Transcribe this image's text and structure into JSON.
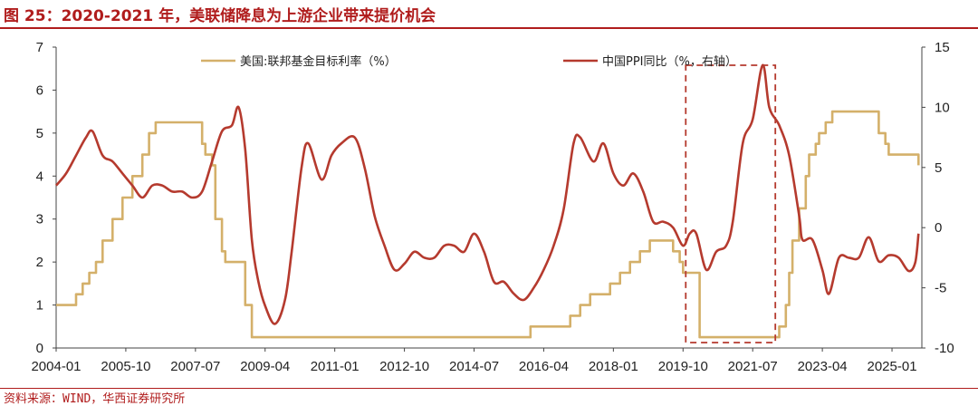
{
  "title": "图 25：2020-2021 年，美联储降息为上游企业带来提价机会",
  "source": "资料来源：WIND，华西证券研究所",
  "colors": {
    "fed": "#d4b06a",
    "ppi": "#b53a2e",
    "accent": "#b01c1c"
  },
  "chart_data": {
    "type": "line",
    "x_ticks": [
      "2004-01",
      "2005-10",
      "2007-07",
      "2009-04",
      "2011-01",
      "2012-10",
      "2014-07",
      "2016-04",
      "2018-01",
      "2019-10",
      "2021-07",
      "2023-04",
      "2025-01"
    ],
    "ylim_left": [
      0,
      7
    ],
    "ylim_right": [
      -10,
      15
    ],
    "y_ticks_left": [
      "0",
      "1",
      "2",
      "3",
      "4",
      "5",
      "6",
      "7"
    ],
    "y_ticks_right": [
      "-10",
      "-5",
      "0",
      "5",
      "10",
      "15"
    ],
    "legend_position": "top",
    "grid": false,
    "annotation": "dashed box over 2019-10 to 2021-07",
    "series": [
      {
        "name": "美国:联邦基金目标利率（%）",
        "axis": "left",
        "points": [
          [
            "2004-01",
            1.0
          ],
          [
            "2004-06",
            1.0
          ],
          [
            "2004-07",
            1.25
          ],
          [
            "2004-09",
            1.5
          ],
          [
            "2004-11",
            1.75
          ],
          [
            "2005-01",
            2.0
          ],
          [
            "2005-03",
            2.5
          ],
          [
            "2005-06",
            3.0
          ],
          [
            "2005-09",
            3.5
          ],
          [
            "2005-12",
            4.0
          ],
          [
            "2006-03",
            4.5
          ],
          [
            "2006-05",
            5.0
          ],
          [
            "2006-07",
            5.25
          ],
          [
            "2007-08",
            5.25
          ],
          [
            "2007-09",
            4.75
          ],
          [
            "2007-10",
            4.5
          ],
          [
            "2007-12",
            4.25
          ],
          [
            "2008-01",
            3.0
          ],
          [
            "2008-03",
            2.25
          ],
          [
            "2008-04",
            2.0
          ],
          [
            "2008-09",
            2.0
          ],
          [
            "2008-10",
            1.0
          ],
          [
            "2008-12",
            0.25
          ],
          [
            "2015-11",
            0.25
          ],
          [
            "2015-12",
            0.5
          ],
          [
            "2016-11",
            0.5
          ],
          [
            "2016-12",
            0.75
          ],
          [
            "2017-03",
            1.0
          ],
          [
            "2017-06",
            1.25
          ],
          [
            "2017-12",
            1.5
          ],
          [
            "2018-03",
            1.75
          ],
          [
            "2018-06",
            2.0
          ],
          [
            "2018-09",
            2.25
          ],
          [
            "2018-12",
            2.5
          ],
          [
            "2019-06",
            2.5
          ],
          [
            "2019-07",
            2.25
          ],
          [
            "2019-09",
            2.0
          ],
          [
            "2019-10",
            1.75
          ],
          [
            "2020-02",
            1.75
          ],
          [
            "2020-03",
            0.25
          ],
          [
            "2022-02",
            0.25
          ],
          [
            "2022-03",
            0.5
          ],
          [
            "2022-05",
            1.0
          ],
          [
            "2022-06",
            1.75
          ],
          [
            "2022-07",
            2.5
          ],
          [
            "2022-09",
            3.25
          ],
          [
            "2022-11",
            4.0
          ],
          [
            "2022-12",
            4.5
          ],
          [
            "2023-02",
            4.75
          ],
          [
            "2023-03",
            5.0
          ],
          [
            "2023-05",
            5.25
          ],
          [
            "2023-07",
            5.5
          ],
          [
            "2024-08",
            5.5
          ],
          [
            "2024-09",
            5.0
          ],
          [
            "2024-11",
            4.75
          ],
          [
            "2024-12",
            4.5
          ],
          [
            "2025-08",
            4.5
          ],
          [
            "2025-09",
            4.25
          ]
        ]
      },
      {
        "name": "中国PPI同比（%，右轴）",
        "axis": "right",
        "points": [
          [
            "2004-01",
            3.5
          ],
          [
            "2004-04",
            4.5
          ],
          [
            "2004-07",
            6.0
          ],
          [
            "2004-10",
            7.5
          ],
          [
            "2004-12",
            8.0
          ],
          [
            "2005-03",
            6.0
          ],
          [
            "2005-06",
            5.5
          ],
          [
            "2005-09",
            4.5
          ],
          [
            "2005-12",
            3.5
          ],
          [
            "2006-03",
            2.5
          ],
          [
            "2006-06",
            3.5
          ],
          [
            "2006-09",
            3.5
          ],
          [
            "2006-12",
            3.0
          ],
          [
            "2007-03",
            3.0
          ],
          [
            "2007-06",
            2.5
          ],
          [
            "2007-09",
            3.0
          ],
          [
            "2007-12",
            5.5
          ],
          [
            "2008-03",
            8.0
          ],
          [
            "2008-06",
            8.5
          ],
          [
            "2008-08",
            10.0
          ],
          [
            "2008-10",
            6.5
          ],
          [
            "2008-12",
            -1.0
          ],
          [
            "2009-02",
            -4.5
          ],
          [
            "2009-04",
            -6.5
          ],
          [
            "2009-07",
            -8.0
          ],
          [
            "2009-10",
            -6.0
          ],
          [
            "2009-12",
            -2.0
          ],
          [
            "2010-03",
            5.0
          ],
          [
            "2010-05",
            7.0
          ],
          [
            "2010-09",
            4.0
          ],
          [
            "2010-12",
            6.0
          ],
          [
            "2011-03",
            7.0
          ],
          [
            "2011-07",
            7.5
          ],
          [
            "2011-10",
            5.0
          ],
          [
            "2012-01",
            1.0
          ],
          [
            "2012-04",
            -1.5
          ],
          [
            "2012-07",
            -3.5
          ],
          [
            "2012-10",
            -3.0
          ],
          [
            "2013-01",
            -2.0
          ],
          [
            "2013-04",
            -2.5
          ],
          [
            "2013-07",
            -2.5
          ],
          [
            "2013-10",
            -1.5
          ],
          [
            "2014-01",
            -1.5
          ],
          [
            "2014-04",
            -2.0
          ],
          [
            "2014-07",
            -0.5
          ],
          [
            "2014-10",
            -2.0
          ],
          [
            "2015-01",
            -4.5
          ],
          [
            "2015-04",
            -4.5
          ],
          [
            "2015-07",
            -5.5
          ],
          [
            "2015-10",
            -6.0
          ],
          [
            "2016-01",
            -5.0
          ],
          [
            "2016-04",
            -3.5
          ],
          [
            "2016-07",
            -1.5
          ],
          [
            "2016-10",
            1.5
          ],
          [
            "2017-01",
            7.0
          ],
          [
            "2017-03",
            7.5
          ],
          [
            "2017-07",
            5.5
          ],
          [
            "2017-10",
            7.0
          ],
          [
            "2018-01",
            4.5
          ],
          [
            "2018-04",
            3.5
          ],
          [
            "2018-07",
            4.5
          ],
          [
            "2018-10",
            3.0
          ],
          [
            "2019-01",
            0.5
          ],
          [
            "2019-04",
            0.5
          ],
          [
            "2019-07",
            0.0
          ],
          [
            "2019-10",
            -1.5
          ],
          [
            "2019-12",
            -0.5
          ],
          [
            "2020-02",
            -0.5
          ],
          [
            "2020-05",
            -3.5
          ],
          [
            "2020-08",
            -2.0
          ],
          [
            "2020-11",
            -1.5
          ],
          [
            "2021-01",
            0.5
          ],
          [
            "2021-04",
            7.0
          ],
          [
            "2021-07",
            9.0
          ],
          [
            "2021-10",
            13.5
          ],
          [
            "2021-12",
            10.0
          ],
          [
            "2022-03",
            8.5
          ],
          [
            "2022-06",
            6.0
          ],
          [
            "2022-09",
            1.0
          ],
          [
            "2022-10",
            -1.0
          ],
          [
            "2023-01",
            -1.0
          ],
          [
            "2023-04",
            -3.5
          ],
          [
            "2023-06",
            -5.5
          ],
          [
            "2023-09",
            -2.5
          ],
          [
            "2023-12",
            -2.5
          ],
          [
            "2024-03",
            -2.5
          ],
          [
            "2024-06",
            -0.8
          ],
          [
            "2024-09",
            -2.8
          ],
          [
            "2024-12",
            -2.3
          ],
          [
            "2025-03",
            -2.5
          ],
          [
            "2025-06",
            -3.6
          ],
          [
            "2025-08",
            -2.9
          ],
          [
            "2025-09",
            -0.5
          ]
        ]
      }
    ]
  }
}
